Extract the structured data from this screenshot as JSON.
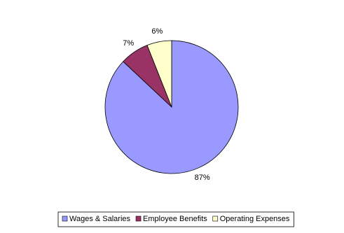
{
  "chart_data": {
    "type": "pie",
    "categories": [
      "Wages & Salaries",
      "Employee Benefits",
      "Operating Expenses"
    ],
    "values": [
      87,
      7,
      6
    ],
    "value_labels": [
      "87%",
      "7%",
      "6%"
    ],
    "colors": [
      "#9999ff",
      "#993366",
      "#ffffcc"
    ],
    "legend": "bottom"
  }
}
